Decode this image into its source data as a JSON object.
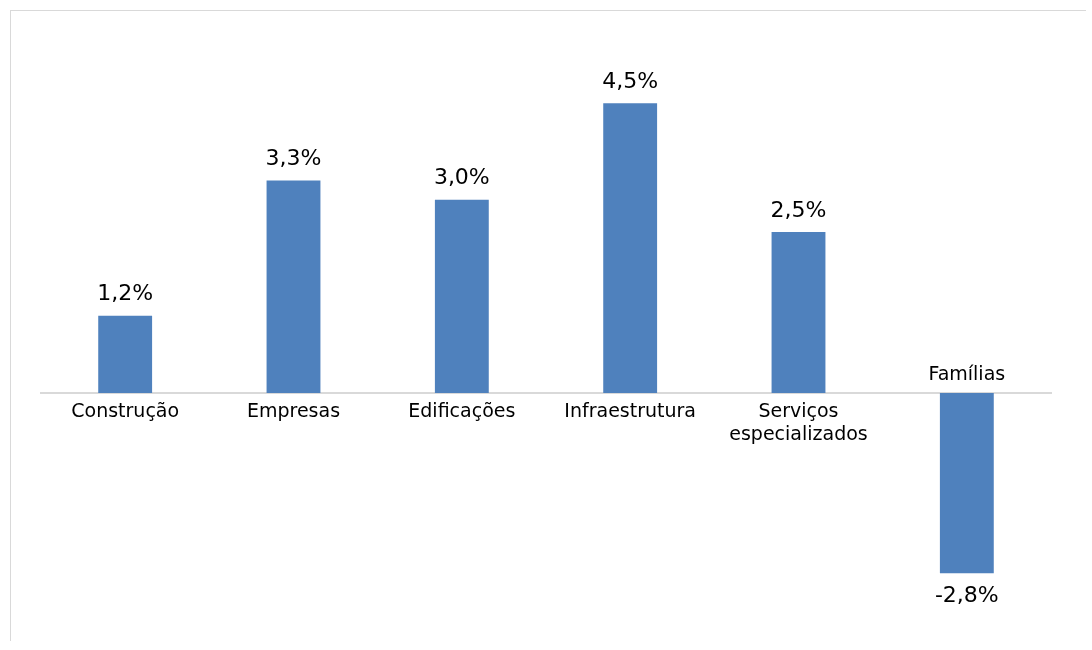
{
  "chart_data": {
    "type": "bar",
    "categories": [
      "Construção",
      "Empresas",
      "Edificações",
      "Infraestrutura",
      "Serviços especializados",
      "Famílias"
    ],
    "values": [
      1.2,
      3.3,
      3.0,
      4.5,
      2.5,
      -2.8
    ],
    "value_labels": [
      "1,2%",
      "3,3%",
      "3,0%",
      "4,5%",
      "2,5%",
      "-2,8%"
    ],
    "color": "#4f81bd",
    "grid": false,
    "legend": false
  }
}
